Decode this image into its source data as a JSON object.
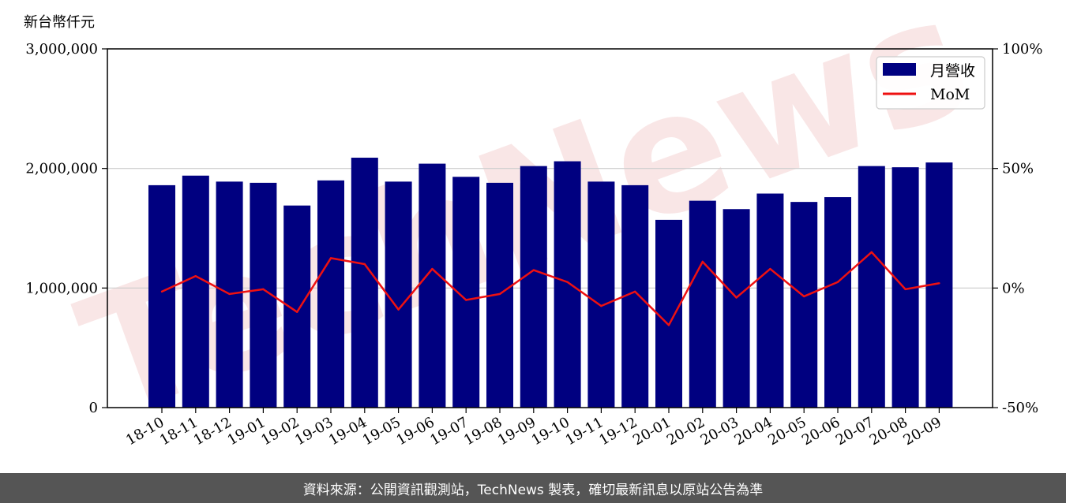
{
  "footer": {
    "source_text": "資料來源：公開資訊觀測站，TechNews 製表，確切最新訊息以原站公告為準"
  },
  "watermark": {
    "text": "TechNews"
  },
  "colors": {
    "bar": "#000080",
    "line": "#ee1111",
    "grid": "#cccccc",
    "footer_bg": "#555555",
    "watermark": "#f7dede"
  },
  "chart_data": {
    "type": "bar",
    "y_unit_label": "新台幣仟元",
    "categories": [
      "18-10",
      "18-11",
      "18-12",
      "19-01",
      "19-02",
      "19-03",
      "19-04",
      "19-05",
      "19-06",
      "19-07",
      "19-08",
      "19-09",
      "19-10",
      "19-11",
      "19-12",
      "20-01",
      "20-02",
      "20-03",
      "20-04",
      "20-05",
      "20-06",
      "20-07",
      "20-08",
      "20-09"
    ],
    "series": [
      {
        "name": "月營收",
        "type": "bar",
        "axis": "left",
        "values": [
          1860000,
          1940000,
          1890000,
          1880000,
          1690000,
          1900000,
          2090000,
          1890000,
          2040000,
          1930000,
          1880000,
          2020000,
          2060000,
          1890000,
          1860000,
          1570000,
          1730000,
          1660000,
          1790000,
          1720000,
          1760000,
          2020000,
          2010000,
          2050000
        ]
      },
      {
        "name": "MoM",
        "type": "line",
        "axis": "right",
        "values": [
          -1.5,
          5.0,
          -2.5,
          -0.5,
          -10.0,
          12.5,
          10.0,
          -9.0,
          8.0,
          -5.0,
          -2.5,
          7.5,
          2.5,
          -7.5,
          -1.5,
          -15.5,
          11.0,
          -4.0,
          8.0,
          -3.5,
          2.5,
          15.0,
          -0.5,
          2.0
        ]
      }
    ],
    "y_left": {
      "lim": [
        0,
        3000000
      ],
      "ticks": [
        0,
        1000000,
        2000000,
        3000000
      ],
      "tick_labels": [
        "0",
        "1,000,000",
        "2,000,000",
        "3,000,000"
      ]
    },
    "y_right": {
      "lim": [
        -50,
        100
      ],
      "ticks": [
        -50,
        0,
        50,
        100
      ],
      "tick_labels": [
        "-50%",
        "0%",
        "50%",
        "100%"
      ]
    },
    "grid": "horizontal",
    "legend": "top-right",
    "xlabel": "",
    "ylabel": ""
  }
}
